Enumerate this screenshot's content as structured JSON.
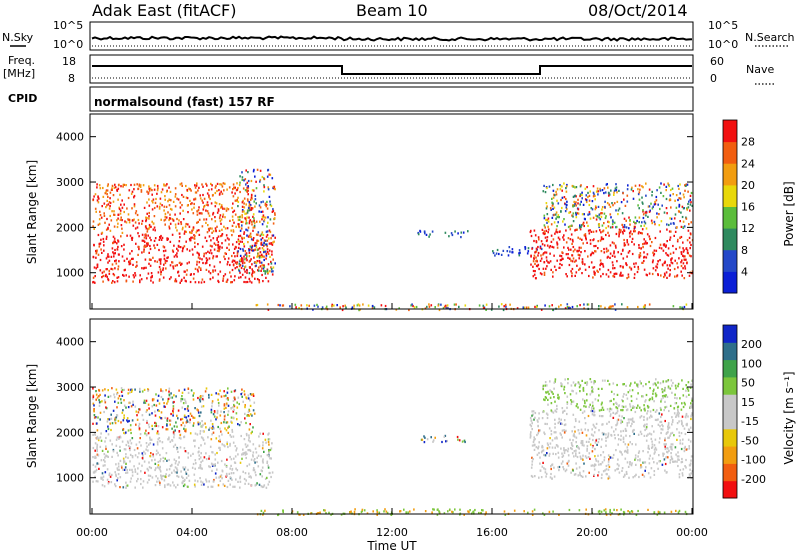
{
  "header": {
    "station": "Adak East (fitACF)",
    "beam": "Beam 10",
    "date": "08/Oct/2014"
  },
  "control_panels": {
    "nsky_label": "N.Sky",
    "nsky_ticks": [
      "10^5",
      "10^0"
    ],
    "nsearch_label": "N.Search",
    "nsearch_ticks": [
      "10^5",
      "10^0"
    ],
    "freq_label": "Freq.",
    "freq_unit": "[MHz]",
    "freq_ticks": [
      "18",
      "8"
    ],
    "nave_label": "Nave",
    "nave_ticks": [
      "60",
      "0"
    ],
    "cpid_label": "CPID",
    "cpid_text": "normalsound (fast) 157 RF"
  },
  "chart_data": [
    {
      "type": "heatmap",
      "name": "power",
      "ylabel": "Slant Range [km]",
      "xlabel": "",
      "ylim": [
        200,
        4500
      ],
      "yticks": [
        "1000",
        "2000",
        "3000",
        "4000"
      ],
      "xlim": [
        0,
        24
      ],
      "colorbar_label": "Power [dB]",
      "colorbar_ticks": [
        "28",
        "24",
        "20",
        "16",
        "12",
        "8",
        "4"
      ],
      "colors": [
        "#0b1fd6",
        "#2448c8",
        "#2f8a5f",
        "#5bbd3b",
        "#e8d80a",
        "#f29d10",
        "#f25e10",
        "#f21010"
      ],
      "regions": [
        {
          "t0": 0.0,
          "t1": 7.2,
          "r0": 800,
          "r1": 1900,
          "level": "high"
        },
        {
          "t0": 0.0,
          "t1": 6.5,
          "r0": 1900,
          "r1": 3000,
          "level": "mid"
        },
        {
          "t0": 5.8,
          "t1": 7.3,
          "r0": 1000,
          "r1": 3300,
          "level": "mixed"
        },
        {
          "t0": 13.0,
          "t1": 15.0,
          "r0": 1800,
          "r1": 1950,
          "level": "low"
        },
        {
          "t0": 16.0,
          "t1": 18.0,
          "r0": 1400,
          "r1": 1600,
          "level": "low"
        },
        {
          "t0": 17.5,
          "t1": 24.0,
          "r0": 900,
          "r1": 2000,
          "level": "high"
        },
        {
          "t0": 18.0,
          "t1": 24.0,
          "r0": 2000,
          "r1": 3000,
          "level": "mixed"
        },
        {
          "t0": 6.5,
          "t1": 24.0,
          "r0": 200,
          "r1": 330,
          "level": "ground"
        }
      ]
    },
    {
      "type": "heatmap",
      "name": "velocity",
      "ylabel": "Slant Range [km]",
      "xlabel": "Time UT",
      "ylim": [
        200,
        4500
      ],
      "yticks": [
        "1000",
        "2000",
        "3000",
        "4000"
      ],
      "xlim": [
        0,
        24
      ],
      "xticks": [
        "00:00",
        "04:00",
        "08:00",
        "12:00",
        "16:00",
        "20:00",
        "00:00"
      ],
      "colorbar_label": "Velocity [m s⁻¹]",
      "colorbar_ticks": [
        "200",
        "100",
        "50",
        "15",
        "-15",
        "-50",
        "-100",
        "-200"
      ],
      "colors": [
        "#f20f10",
        "#f25e10",
        "#f29d10",
        "#e8c80a",
        "#c8c8c8",
        "#c8c8c8",
        "#7cc63c",
        "#3fa34a",
        "#2f6f8a",
        "#1026c8"
      ],
      "regions": [
        {
          "t0": 0.0,
          "t1": 7.2,
          "r0": 800,
          "r1": 2000,
          "level": "grey"
        },
        {
          "t0": 0.0,
          "t1": 6.5,
          "r0": 2000,
          "r1": 3000,
          "level": "mixed"
        },
        {
          "t0": 13.0,
          "t1": 15.0,
          "r0": 1800,
          "r1": 1950,
          "level": "mixed"
        },
        {
          "t0": 17.5,
          "t1": 24.0,
          "r0": 1000,
          "r1": 2500,
          "level": "grey"
        },
        {
          "t0": 18.0,
          "t1": 24.0,
          "r0": 2500,
          "r1": 3200,
          "level": "green"
        },
        {
          "t0": 6.5,
          "t1": 24.0,
          "r0": 200,
          "r1": 330,
          "level": "ground"
        }
      ]
    }
  ]
}
